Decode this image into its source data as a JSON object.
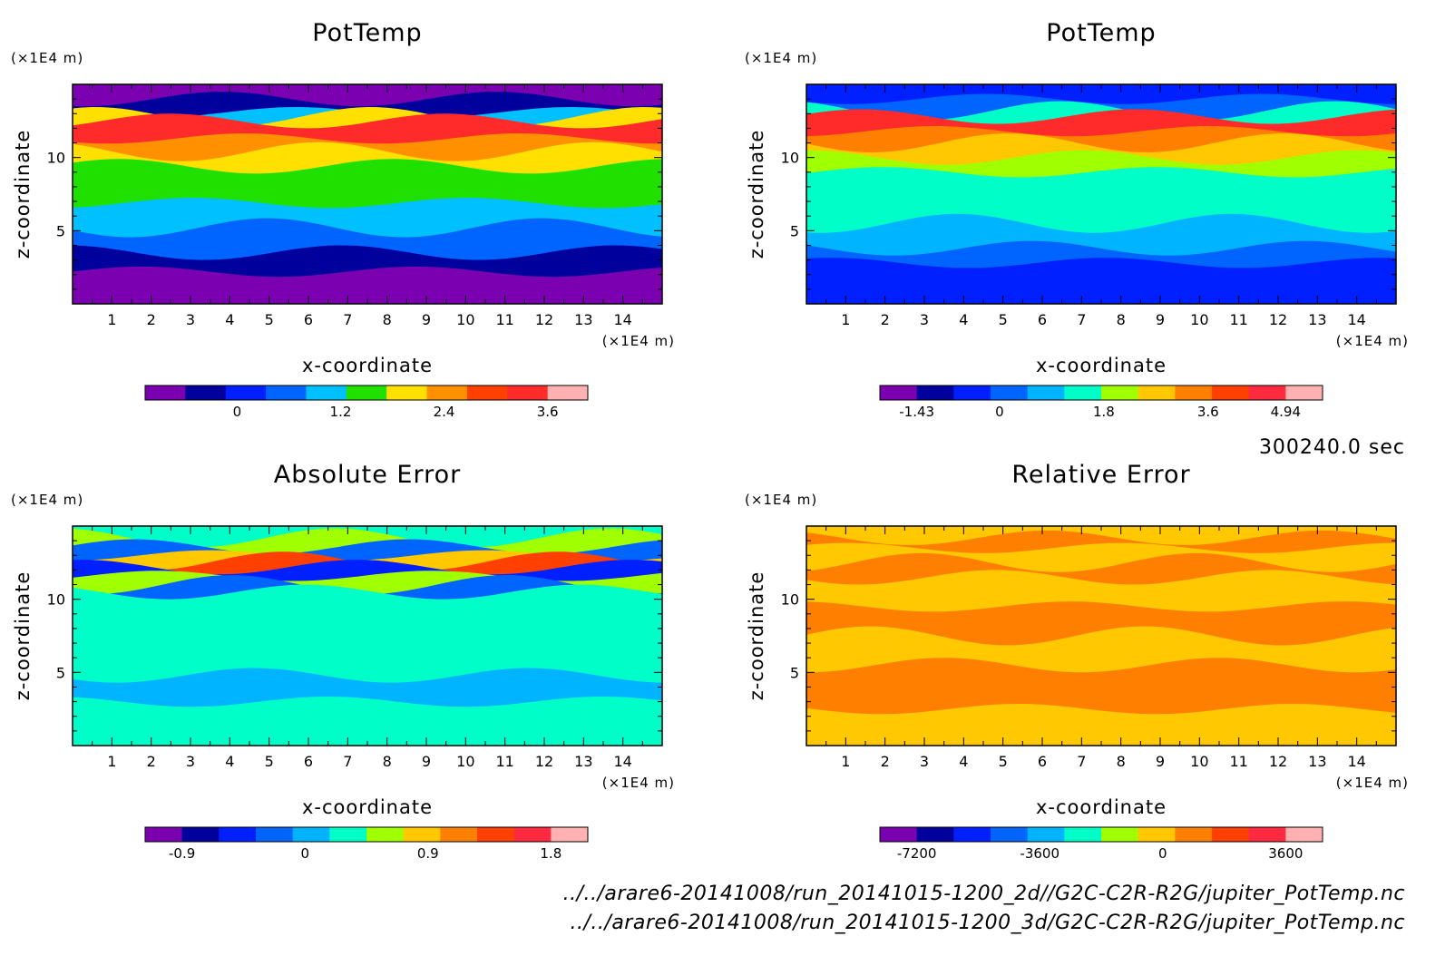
{
  "chart_data": [
    {
      "type": "heatmap",
      "title": "PotTemp",
      "xlabel": "x-coordinate",
      "ylabel": "z-coordinate",
      "x_unit": "(×1E4 m)",
      "y_unit": "(×1E4 m)",
      "x_ticks": [
        "1",
        "2",
        "3",
        "4",
        "5",
        "6",
        "7",
        "8",
        "9",
        "10",
        "11",
        "12",
        "13",
        "14"
      ],
      "y_ticks": [
        "5",
        "10"
      ],
      "xlim": [
        0,
        15
      ],
      "ylim": [
        0,
        15
      ],
      "colorbar": {
        "colors": [
          "#7a00b0",
          "#00009c",
          "#0020ff",
          "#0064ff",
          "#00c0ff",
          "#20e000",
          "#ffe000",
          "#ff9000",
          "#ff4000",
          "#ff2a2a",
          "#ffb0b0"
        ],
        "levels": [
          -0.6,
          0,
          0.6,
          1.2,
          1.8,
          2.4,
          3.0,
          3.6
        ],
        "tick_labels": [
          "0",
          "1.2",
          "2.4",
          "3.6"
        ],
        "tick_values": [
          0,
          1.2,
          2.4,
          3.6
        ]
      },
      "bands": [
        {
          "z_top": 2.2,
          "color": "#7a00b0"
        },
        {
          "z_top": 3.5,
          "color": "#00009c"
        },
        {
          "z_top": 5.2,
          "color": "#0064ff"
        },
        {
          "z_top": 6.9,
          "color": "#00c0ff"
        },
        {
          "z_top": 9.4,
          "color": "#20e000"
        },
        {
          "z_top": 10.4,
          "color": "#ffe000"
        },
        {
          "z_top": 11.3,
          "color": "#ff9000"
        },
        {
          "z_top": 12.5,
          "color": "#ff2a2a"
        },
        {
          "z_top": 12.8,
          "color": "#ffe000"
        },
        {
          "z_top": 13.1,
          "color": "#00c0ff"
        },
        {
          "z_top": 14.0,
          "color": "#00009c"
        },
        {
          "z_top": 15.0,
          "color": "#7a00b0"
        }
      ]
    },
    {
      "type": "heatmap",
      "title": "PotTemp",
      "xlabel": "x-coordinate",
      "ylabel": "z-coordinate",
      "x_unit": "(×1E4 m)",
      "y_unit": "(×1E4 m)",
      "x_ticks": [
        "1",
        "2",
        "3",
        "4",
        "5",
        "6",
        "7",
        "8",
        "9",
        "10",
        "11",
        "12",
        "13",
        "14"
      ],
      "y_ticks": [
        "5",
        "10"
      ],
      "xlim": [
        0,
        15
      ],
      "ylim": [
        0,
        15
      ],
      "colorbar": {
        "colors": [
          "#7a00b0",
          "#00009c",
          "#0020ff",
          "#0064ff",
          "#00b4ff",
          "#00ffc8",
          "#a0ff00",
          "#ffc800",
          "#ff8000",
          "#ff4000",
          "#ff2a40",
          "#ffb0b0"
        ],
        "levels": [
          -1.43,
          0,
          1.8,
          3.6,
          4.94
        ],
        "tick_labels": [
          "-1.43",
          "0",
          "1.8",
          "3.6",
          "4.94"
        ],
        "tick_values": [
          -1.43,
          0,
          1.8,
          3.6,
          4.94
        ]
      },
      "bands": [
        {
          "z_top": 2.8,
          "color": "#0020ff"
        },
        {
          "z_top": 3.8,
          "color": "#0064ff"
        },
        {
          "z_top": 5.5,
          "color": "#00b4ff"
        },
        {
          "z_top": 9.0,
          "color": "#00ffc8"
        },
        {
          "z_top": 10.0,
          "color": "#a0ff00"
        },
        {
          "z_top": 11.0,
          "color": "#ffc800"
        },
        {
          "z_top": 11.8,
          "color": "#ff8000"
        },
        {
          "z_top": 12.8,
          "color": "#ff2a2a"
        },
        {
          "z_top": 13.2,
          "color": "#00ffc8"
        },
        {
          "z_top": 14.0,
          "color": "#0064ff"
        },
        {
          "z_top": 15.0,
          "color": "#0020ff"
        }
      ]
    },
    {
      "type": "heatmap",
      "title": "Absolute Error",
      "xlabel": "x-coordinate",
      "ylabel": "z-coordinate",
      "x_unit": "(×1E4 m)",
      "y_unit": "(×1E4 m)",
      "x_ticks": [
        "1",
        "2",
        "3",
        "4",
        "5",
        "6",
        "7",
        "8",
        "9",
        "10",
        "11",
        "12",
        "13",
        "14"
      ],
      "y_ticks": [
        "5",
        "10"
      ],
      "xlim": [
        0,
        15
      ],
      "ylim": [
        0,
        15
      ],
      "colorbar": {
        "colors": [
          "#7a00b0",
          "#00009c",
          "#0020ff",
          "#0064ff",
          "#00b4ff",
          "#00ffc8",
          "#a0ff00",
          "#ffc800",
          "#ff8000",
          "#ff4000",
          "#ff2a40",
          "#ffb0b0"
        ],
        "levels": [
          -0.9,
          0,
          0.9,
          1.8
        ],
        "tick_labels": [
          "-0.9",
          "0",
          "0.9",
          "1.8"
        ],
        "tick_values": [
          -0.9,
          0,
          0.9,
          1.8
        ]
      },
      "bands": [
        {
          "z_top": 3.0,
          "color": "#00ffc8"
        },
        {
          "z_top": 4.8,
          "color": "#00b4ff"
        },
        {
          "z_top": 6.5,
          "color": "#00ffc8"
        },
        {
          "z_top": 9.2,
          "color": "#00ffc8"
        },
        {
          "z_top": 10.5,
          "color": "#00ffc8"
        },
        {
          "z_top": 11.0,
          "color": "#0064ff"
        },
        {
          "z_top": 11.6,
          "color": "#a0ff00"
        },
        {
          "z_top": 12.2,
          "color": "#0020ff"
        },
        {
          "z_top": 12.6,
          "color": "#ff4000"
        },
        {
          "z_top": 13.0,
          "color": "#ffc800"
        },
        {
          "z_top": 13.6,
          "color": "#0064ff"
        },
        {
          "z_top": 14.2,
          "color": "#a0ff00"
        },
        {
          "z_top": 15.0,
          "color": "#00ffc8"
        }
      ]
    },
    {
      "type": "heatmap",
      "title": "Relative Error",
      "xlabel": "x-coordinate",
      "ylabel": "z-coordinate",
      "x_unit": "(×1E4 m)",
      "y_unit": "(×1E4 m)",
      "x_ticks": [
        "1",
        "2",
        "3",
        "4",
        "5",
        "6",
        "7",
        "8",
        "9",
        "10",
        "11",
        "12",
        "13",
        "14"
      ],
      "y_ticks": [
        "5",
        "10"
      ],
      "xlim": [
        0,
        15
      ],
      "ylim": [
        0,
        15
      ],
      "colorbar": {
        "colors": [
          "#7a00b0",
          "#00009c",
          "#0020ff",
          "#0064ff",
          "#00b4ff",
          "#00ffc8",
          "#a0ff00",
          "#ffc800",
          "#ff8000",
          "#ff4000",
          "#ff2a40",
          "#ffb0b0"
        ],
        "levels": [
          -7200,
          -3600,
          0,
          3600
        ],
        "tick_labels": [
          "-7200",
          "-3600",
          "0",
          "3600"
        ],
        "tick_values": [
          -7200,
          -3600,
          0,
          3600
        ]
      },
      "bands": [
        {
          "z_top": 2.5,
          "color": "#ffc800"
        },
        {
          "z_top": 5.5,
          "color": "#ff8000"
        },
        {
          "z_top": 7.5,
          "color": "#ffc800"
        },
        {
          "z_top": 9.5,
          "color": "#ff8000"
        },
        {
          "z_top": 11.5,
          "color": "#ffc800"
        },
        {
          "z_top": 12.5,
          "color": "#ff8000"
        },
        {
          "z_top": 13.5,
          "color": "#ffc800"
        },
        {
          "z_top": 14.2,
          "color": "#ff8000"
        },
        {
          "z_top": 15.0,
          "color": "#ffc800"
        }
      ]
    }
  ],
  "time_label": "300240.0 sec",
  "file_paths": [
    "../../arare6-20141008/run_20141015-1200_2d//G2C-C2R-R2G/jupiter_PotTemp.nc",
    "../../arare6-20141008/run_20141015-1200_3d/G2C-C2R-R2G/jupiter_PotTemp.nc"
  ]
}
